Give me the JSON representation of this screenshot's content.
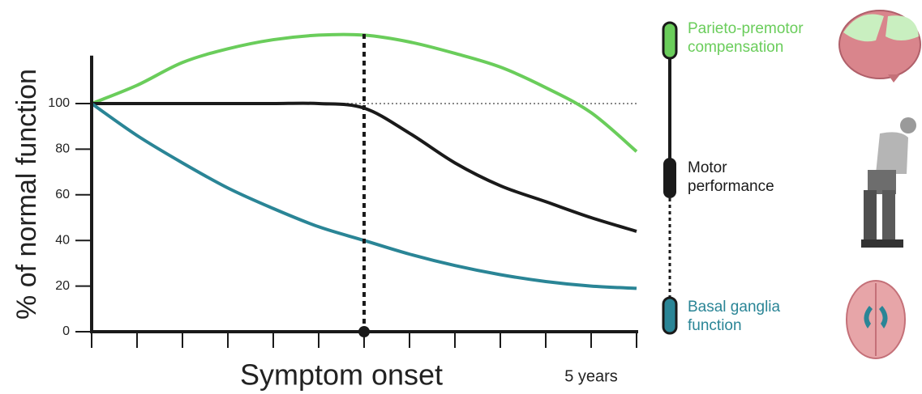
{
  "chart_data": {
    "type": "line",
    "x": [
      0,
      1,
      2,
      3,
      4,
      5,
      6,
      7,
      8,
      9,
      10,
      11,
      12
    ],
    "xlim": [
      0,
      12
    ],
    "xticks": [
      0,
      1,
      2,
      3,
      4,
      5,
      6,
      7,
      8,
      9,
      10,
      11,
      12
    ],
    "ylim": [
      0,
      121
    ],
    "yticks": [
      0,
      20,
      40,
      60,
      80,
      100
    ],
    "y_label": "% of normal function",
    "onset": {
      "label": "Symptom onset",
      "x": 6
    },
    "duration_label": "5 years",
    "reference_line": 100,
    "series": [
      {
        "name": "Parieto-premotor compensation",
        "color": "#6acd5b",
        "values": [
          100,
          108,
          118,
          124,
          128,
          130,
          130,
          127,
          122,
          116,
          107,
          96,
          79
        ]
      },
      {
        "name": "Motor performance",
        "color": "#1a1a1a",
        "values": [
          100,
          100,
          100,
          100,
          100,
          100,
          98,
          87,
          74,
          64,
          57,
          50,
          44
        ]
      },
      {
        "name": "Basal ganglia function",
        "color": "#2a8596",
        "values": [
          100,
          86,
          74,
          63,
          54,
          46,
          40,
          34,
          29,
          25,
          22,
          20,
          19
        ]
      }
    ]
  }
}
